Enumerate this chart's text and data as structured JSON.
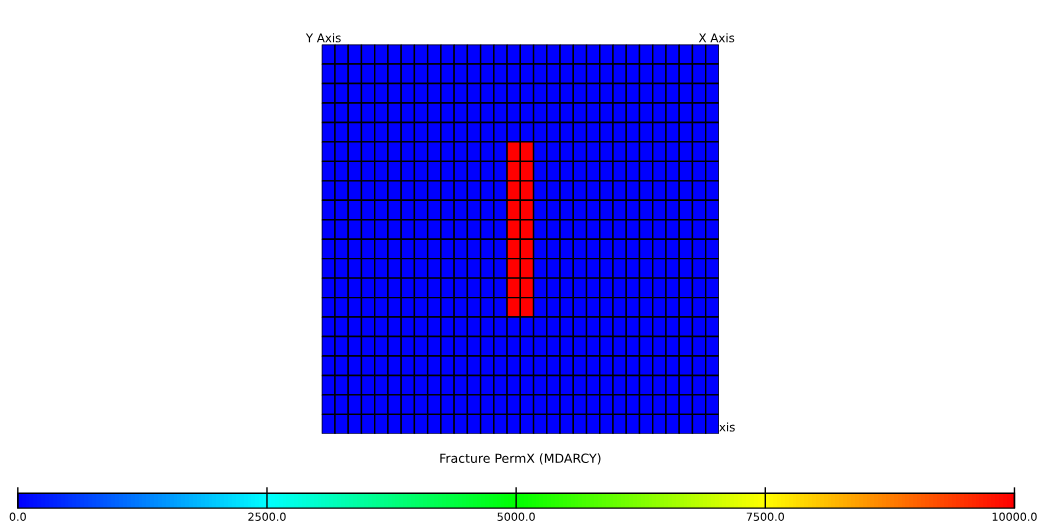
{
  "chart_data": {
    "type": "heatmap",
    "xlabel": "Fracture PermX (MDARCY)",
    "annotations": [
      "Y Axis",
      "X Axis",
      "xis"
    ],
    "categories": [
      null,
      null,
      null,
      null,
      null,
      null,
      null,
      null,
      null,
      null,
      null,
      null,
      null,
      null,
      null,
      null,
      null,
      null,
      null,
      null,
      null,
      null,
      null,
      null,
      null,
      null,
      null,
      null,
      null,
      null
    ],
    "y_categories": [
      null,
      null,
      null,
      null,
      null,
      null,
      null,
      null,
      null,
      null,
      null,
      null,
      null,
      null,
      null,
      null,
      null,
      null,
      null,
      null
    ],
    "cells": [
      [
        0,
        0,
        0,
        0,
        0,
        0,
        0,
        0,
        0,
        0,
        0,
        0,
        0,
        0,
        0,
        0,
        0,
        0,
        0,
        0,
        0,
        0,
        0,
        0,
        0,
        0,
        0,
        0,
        0,
        0
      ],
      [
        0,
        0,
        0,
        0,
        0,
        0,
        0,
        0,
        0,
        0,
        0,
        0,
        0,
        0,
        0,
        0,
        0,
        0,
        0,
        0,
        0,
        0,
        0,
        0,
        0,
        0,
        0,
        0,
        0,
        0
      ],
      [
        0,
        0,
        0,
        0,
        0,
        0,
        0,
        0,
        0,
        0,
        0,
        0,
        0,
        0,
        0,
        0,
        0,
        0,
        0,
        0,
        0,
        0,
        0,
        0,
        0,
        0,
        0,
        0,
        0,
        0
      ],
      [
        0,
        0,
        0,
        0,
        0,
        0,
        0,
        0,
        0,
        0,
        0,
        0,
        0,
        0,
        0,
        0,
        0,
        0,
        0,
        0,
        0,
        0,
        0,
        0,
        0,
        0,
        0,
        0,
        0,
        0
      ],
      [
        0,
        0,
        0,
        0,
        0,
        0,
        0,
        0,
        0,
        0,
        0,
        0,
        0,
        0,
        0,
        0,
        0,
        0,
        0,
        0,
        0,
        0,
        0,
        0,
        0,
        0,
        0,
        0,
        0,
        0
      ],
      [
        0,
        0,
        0,
        0,
        0,
        0,
        0,
        0,
        0,
        0,
        0,
        0,
        0,
        0,
        10000,
        10000,
        0,
        0,
        0,
        0,
        0,
        0,
        0,
        0,
        0,
        0,
        0,
        0,
        0,
        0
      ],
      [
        0,
        0,
        0,
        0,
        0,
        0,
        0,
        0,
        0,
        0,
        0,
        0,
        0,
        0,
        10000,
        10000,
        0,
        0,
        0,
        0,
        0,
        0,
        0,
        0,
        0,
        0,
        0,
        0,
        0,
        0
      ],
      [
        0,
        0,
        0,
        0,
        0,
        0,
        0,
        0,
        0,
        0,
        0,
        0,
        0,
        0,
        10000,
        10000,
        0,
        0,
        0,
        0,
        0,
        0,
        0,
        0,
        0,
        0,
        0,
        0,
        0,
        0
      ],
      [
        0,
        0,
        0,
        0,
        0,
        0,
        0,
        0,
        0,
        0,
        0,
        0,
        0,
        0,
        10000,
        10000,
        0,
        0,
        0,
        0,
        0,
        0,
        0,
        0,
        0,
        0,
        0,
        0,
        0,
        0
      ],
      [
        0,
        0,
        0,
        0,
        0,
        0,
        0,
        0,
        0,
        0,
        0,
        0,
        0,
        0,
        10000,
        10000,
        0,
        0,
        0,
        0,
        0,
        0,
        0,
        0,
        0,
        0,
        0,
        0,
        0,
        0
      ],
      [
        0,
        0,
        0,
        0,
        0,
        0,
        0,
        0,
        0,
        0,
        0,
        0,
        0,
        0,
        10000,
        10000,
        0,
        0,
        0,
        0,
        0,
        0,
        0,
        0,
        0,
        0,
        0,
        0,
        0,
        0
      ],
      [
        0,
        0,
        0,
        0,
        0,
        0,
        0,
        0,
        0,
        0,
        0,
        0,
        0,
        0,
        10000,
        10000,
        0,
        0,
        0,
        0,
        0,
        0,
        0,
        0,
        0,
        0,
        0,
        0,
        0,
        0
      ],
      [
        0,
        0,
        0,
        0,
        0,
        0,
        0,
        0,
        0,
        0,
        0,
        0,
        0,
        0,
        10000,
        10000,
        0,
        0,
        0,
        0,
        0,
        0,
        0,
        0,
        0,
        0,
        0,
        0,
        0,
        0
      ],
      [
        0,
        0,
        0,
        0,
        0,
        0,
        0,
        0,
        0,
        0,
        0,
        0,
        0,
        0,
        10000,
        10000,
        0,
        0,
        0,
        0,
        0,
        0,
        0,
        0,
        0,
        0,
        0,
        0,
        0,
        0
      ],
      [
        0,
        0,
        0,
        0,
        0,
        0,
        0,
        0,
        0,
        0,
        0,
        0,
        0,
        0,
        0,
        0,
        0,
        0,
        0,
        0,
        0,
        0,
        0,
        0,
        0,
        0,
        0,
        0,
        0,
        0
      ],
      [
        0,
        0,
        0,
        0,
        0,
        0,
        0,
        0,
        0,
        0,
        0,
        0,
        0,
        0,
        0,
        0,
        0,
        0,
        0,
        0,
        0,
        0,
        0,
        0,
        0,
        0,
        0,
        0,
        0,
        0
      ],
      [
        0,
        0,
        0,
        0,
        0,
        0,
        0,
        0,
        0,
        0,
        0,
        0,
        0,
        0,
        0,
        0,
        0,
        0,
        0,
        0,
        0,
        0,
        0,
        0,
        0,
        0,
        0,
        0,
        0,
        0
      ],
      [
        0,
        0,
        0,
        0,
        0,
        0,
        0,
        0,
        0,
        0,
        0,
        0,
        0,
        0,
        0,
        0,
        0,
        0,
        0,
        0,
        0,
        0,
        0,
        0,
        0,
        0,
        0,
        0,
        0,
        0
      ],
      [
        0,
        0,
        0,
        0,
        0,
        0,
        0,
        0,
        0,
        0,
        0,
        0,
        0,
        0,
        0,
        0,
        0,
        0,
        0,
        0,
        0,
        0,
        0,
        0,
        0,
        0,
        0,
        0,
        0,
        0
      ],
      [
        0,
        0,
        0,
        0,
        0,
        0,
        0,
        0,
        0,
        0,
        0,
        0,
        0,
        0,
        0,
        0,
        0,
        0,
        0,
        0,
        0,
        0,
        0,
        0,
        0,
        0,
        0,
        0,
        0,
        0
      ]
    ],
    "clim": [
      0,
      10000
    ],
    "cticks": [
      {
        "value": 0,
        "label": "0.0"
      },
      {
        "value": 2500,
        "label": "2500.0"
      },
      {
        "value": 5000,
        "label": "5000.0"
      },
      {
        "value": 7500,
        "label": "7500.0"
      },
      {
        "value": 10000,
        "label": "10000.0"
      }
    ],
    "tick_labels": false
  }
}
